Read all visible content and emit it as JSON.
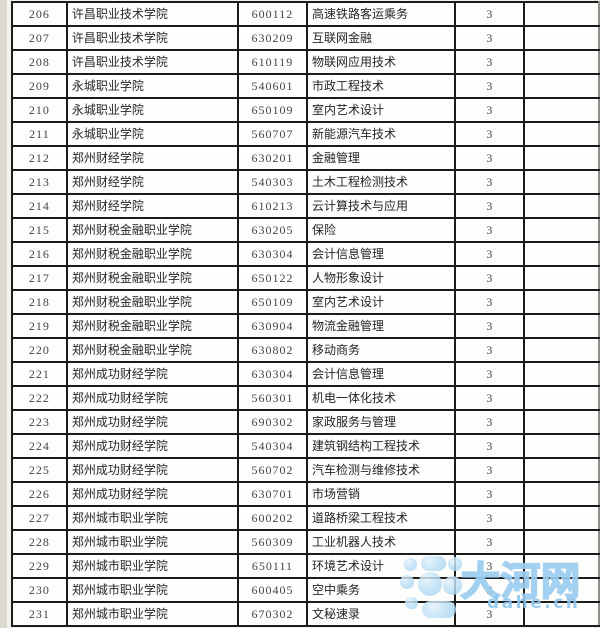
{
  "table": {
    "rows": [
      {
        "no": "206",
        "college": "许昌职业技术学院",
        "code": "600112",
        "major": "高速铁路客运乘务",
        "count": "3",
        "note": ""
      },
      {
        "no": "207",
        "college": "许昌职业技术学院",
        "code": "630209",
        "major": "互联网金融",
        "count": "3",
        "note": ""
      },
      {
        "no": "208",
        "college": "许昌职业技术学院",
        "code": "610119",
        "major": "物联网应用技术",
        "count": "3",
        "note": ""
      },
      {
        "no": "209",
        "college": "永城职业学院",
        "code": "540601",
        "major": "市政工程技术",
        "count": "3",
        "note": ""
      },
      {
        "no": "210",
        "college": "永城职业学院",
        "code": "650109",
        "major": "室内艺术设计",
        "count": "3",
        "note": ""
      },
      {
        "no": "211",
        "college": "永城职业学院",
        "code": "560707",
        "major": "新能源汽车技术",
        "count": "3",
        "note": ""
      },
      {
        "no": "212",
        "college": "郑州财经学院",
        "code": "630201",
        "major": "金融管理",
        "count": "3",
        "note": ""
      },
      {
        "no": "213",
        "college": "郑州财经学院",
        "code": "540303",
        "major": "土木工程检测技术",
        "count": "3",
        "note": ""
      },
      {
        "no": "214",
        "college": "郑州财经学院",
        "code": "610213",
        "major": "云计算技术与应用",
        "count": "3",
        "note": ""
      },
      {
        "no": "215",
        "college": "郑州财税金融职业学院",
        "code": "630205",
        "major": "保险",
        "count": "3",
        "note": ""
      },
      {
        "no": "216",
        "college": "郑州财税金融职业学院",
        "code": "630304",
        "major": "会计信息管理",
        "count": "3",
        "note": ""
      },
      {
        "no": "217",
        "college": "郑州财税金融职业学院",
        "code": "650122",
        "major": "人物形象设计",
        "count": "3",
        "note": ""
      },
      {
        "no": "218",
        "college": "郑州财税金融职业学院",
        "code": "650109",
        "major": "室内艺术设计",
        "count": "3",
        "note": ""
      },
      {
        "no": "219",
        "college": "郑州财税金融职业学院",
        "code": "630904",
        "major": "物流金融管理",
        "count": "3",
        "note": ""
      },
      {
        "no": "220",
        "college": "郑州财税金融职业学院",
        "code": "630802",
        "major": "移动商务",
        "count": "3",
        "note": ""
      },
      {
        "no": "221",
        "college": "郑州成功财经学院",
        "code": "630304",
        "major": "会计信息管理",
        "count": "3",
        "note": ""
      },
      {
        "no": "222",
        "college": "郑州成功财经学院",
        "code": "560301",
        "major": "机电一体化技术",
        "count": "3",
        "note": ""
      },
      {
        "no": "223",
        "college": "郑州成功财经学院",
        "code": "690302",
        "major": "家政服务与管理",
        "count": "3",
        "note": ""
      },
      {
        "no": "224",
        "college": "郑州成功财经学院",
        "code": "540304",
        "major": "建筑钢结构工程技术",
        "count": "3",
        "note": ""
      },
      {
        "no": "225",
        "college": "郑州成功财经学院",
        "code": "560702",
        "major": "汽车检测与维修技术",
        "count": "3",
        "note": ""
      },
      {
        "no": "226",
        "college": "郑州成功财经学院",
        "code": "630701",
        "major": "市场营销",
        "count": "3",
        "note": ""
      },
      {
        "no": "227",
        "college": "郑州城市职业学院",
        "code": "600202",
        "major": "道路桥梁工程技术",
        "count": "3",
        "note": ""
      },
      {
        "no": "228",
        "college": "郑州城市职业学院",
        "code": "560309",
        "major": "工业机器人技术",
        "count": "3",
        "note": ""
      },
      {
        "no": "229",
        "college": "郑州城市职业学院",
        "code": "650111",
        "major": "环境艺术设计",
        "count": "3",
        "note": ""
      },
      {
        "no": "230",
        "college": "郑州城市职业学院",
        "code": "600405",
        "major": "空中乘务",
        "count": "3",
        "note": ""
      },
      {
        "no": "231",
        "college": "郑州城市职业学院",
        "code": "670302",
        "major": "文秘速录",
        "count": "3",
        "note": ""
      }
    ]
  },
  "watermark": {
    "site_name": "大河网",
    "domain": "dahe.cn",
    "text_color": "#9accee",
    "logo_color": "#aed7f2"
  }
}
